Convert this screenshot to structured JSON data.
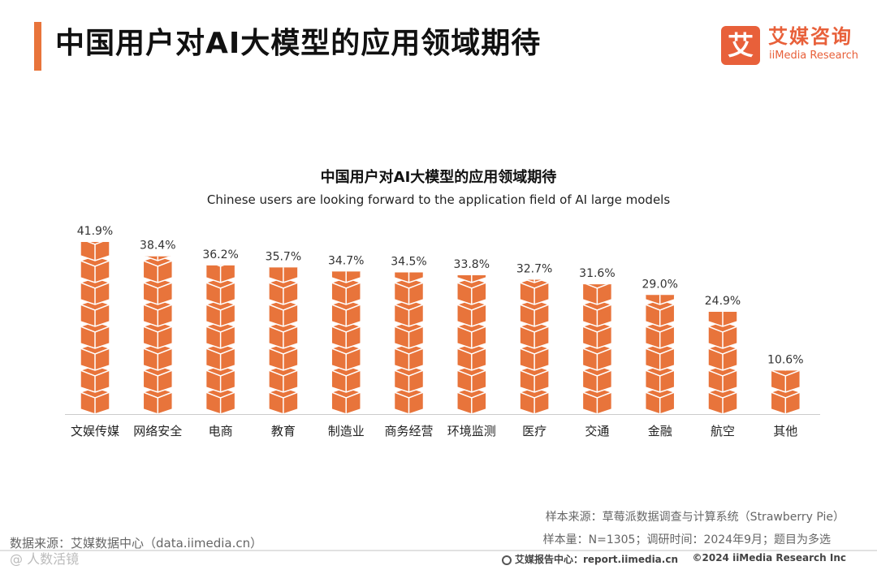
{
  "header": {
    "title": "中国用户对AI大模型的应用领域期待",
    "logo_mark": "艾",
    "logo_cn": "艾媒咨询",
    "logo_en": "iiMedia Research"
  },
  "chart_data": {
    "type": "bar",
    "title": "中国用户对AI大模型的应用领域期待",
    "subtitle": "Chinese users are looking forward to the application field of AI large models",
    "categories": [
      "文娱传媒",
      "网络安全",
      "电商",
      "教育",
      "制造业",
      "商务经营",
      "环境监测",
      "医疗",
      "交通",
      "金融",
      "航空",
      "其他"
    ],
    "values": [
      41.9,
      38.4,
      36.2,
      35.7,
      34.7,
      34.5,
      33.8,
      32.7,
      31.6,
      29.0,
      24.9,
      10.6
    ],
    "value_labels": [
      "41.9%",
      "38.4%",
      "36.2%",
      "35.7%",
      "34.7%",
      "34.5%",
      "33.8%",
      "32.7%",
      "31.6%",
      "29.0%",
      "24.9%",
      "10.6%"
    ],
    "unit": "%",
    "ylim": [
      0,
      45
    ],
    "bar_color": "#e8743b",
    "xlabel": "",
    "ylabel": ""
  },
  "footer": {
    "sample_source": "样本来源：草莓派数据调查与计算系统（Strawberry Pie）",
    "sample_size": "样本量：N=1305；调研时间：2024年9月；题目为多选",
    "data_source": "数据来源：艾媒数据中心（data.iimedia.cn）",
    "watermark": "@ 人数活镜",
    "report_center": "艾媒报告中心：report.iimedia.cn",
    "copyright": "©2024  iiMedia Research  Inc"
  }
}
